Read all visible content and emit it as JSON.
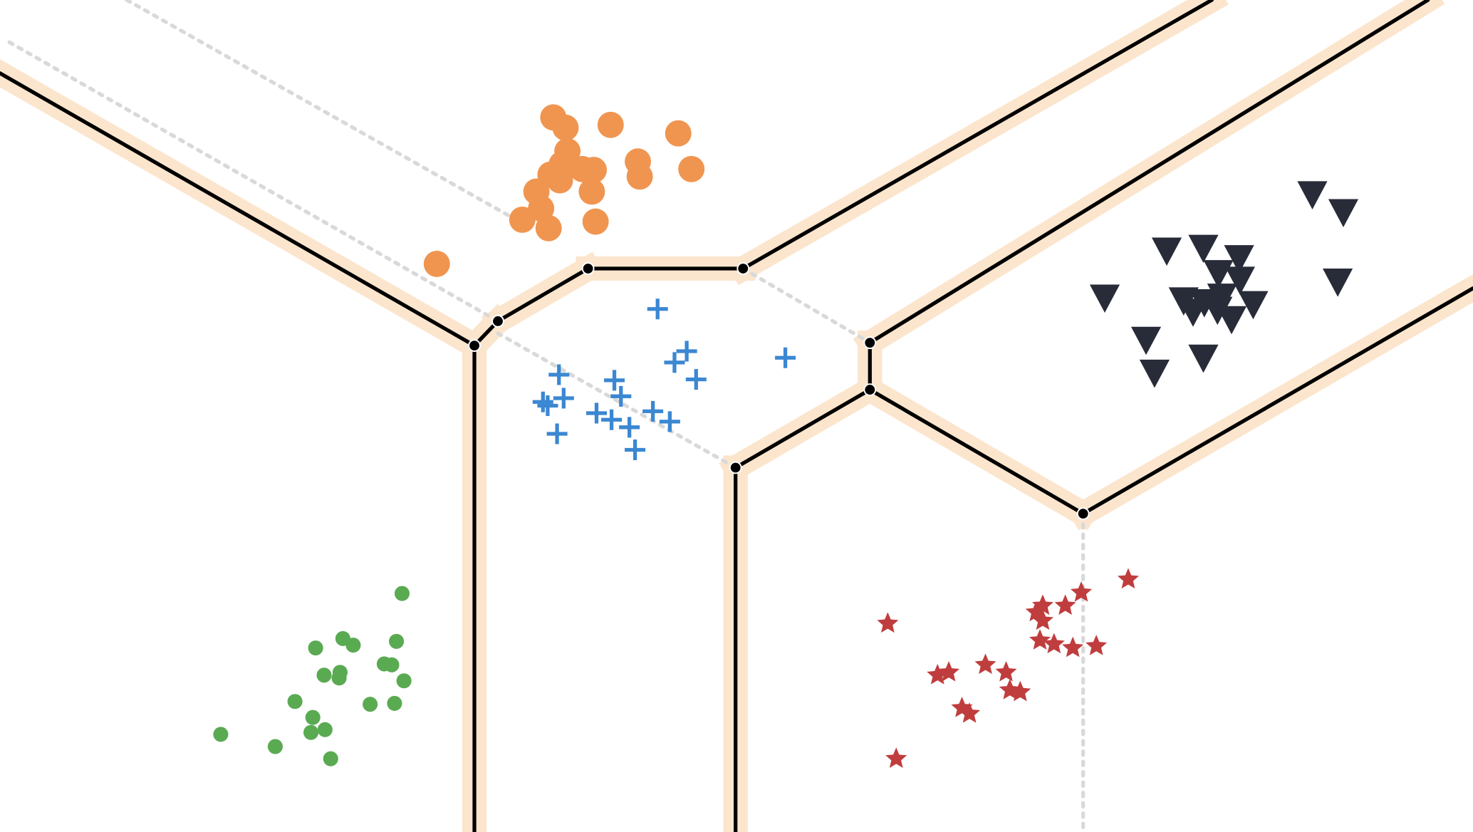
{
  "chart_data": {
    "type": "scatter",
    "title": "",
    "xlabel": "",
    "ylabel": "",
    "xlim": [
      0,
      1568
    ],
    "ylim": [
      0,
      886
    ],
    "grid": false,
    "legend": "none",
    "colors": {
      "boundary": "#000000",
      "margin_band": "#fce5cd",
      "dashed": "#d9d9d9"
    },
    "boundary_vertices": {
      "A": [
        505,
        368
      ],
      "B": [
        530,
        342
      ],
      "C": [
        626,
        286
      ],
      "D": [
        791,
        286
      ],
      "E": [
        926,
        365
      ],
      "F": [
        926,
        415
      ],
      "G": [
        783,
        498
      ],
      "H": [
        1153,
        547
      ]
    },
    "boundary_lines": [
      [
        [
          0,
          78
        ],
        [
          505,
          368
        ]
      ],
      [
        [
          505,
          368
        ],
        [
          505,
          886
        ]
      ],
      [
        [
          505,
          368
        ],
        [
          530,
          342
        ]
      ],
      [
        [
          530,
          342
        ],
        [
          626,
          286
        ]
      ],
      [
        [
          626,
          286
        ],
        [
          791,
          286
        ]
      ],
      [
        [
          791,
          286
        ],
        [
          1290,
          0
        ]
      ],
      [
        [
          926,
          365
        ],
        [
          1520,
          0
        ]
      ],
      [
        [
          926,
          365
        ],
        [
          926,
          415
        ]
      ],
      [
        [
          926,
          415
        ],
        [
          783,
          498
        ]
      ],
      [
        [
          783,
          498
        ],
        [
          783,
          886
        ]
      ],
      [
        [
          926,
          415
        ],
        [
          1153,
          547
        ]
      ],
      [
        [
          1153,
          547
        ],
        [
          1568,
          307
        ]
      ]
    ],
    "dashed_lines": [
      [
        [
          135,
          0
        ],
        [
          560,
          240
        ]
      ],
      [
        [
          10,
          45
        ],
        [
          530,
          342
        ]
      ],
      [
        [
          530,
          355
        ],
        [
          783,
          498
        ]
      ],
      [
        [
          791,
          286
        ],
        [
          926,
          365
        ]
      ],
      [
        [
          1153,
          547
        ],
        [
          1153,
          886
        ]
      ]
    ],
    "series": [
      {
        "marker": "circle-large",
        "color": "#f09550",
        "points": [
          [
            589,
            125
          ],
          [
            602,
            136
          ],
          [
            650,
            133
          ],
          [
            722,
            142
          ],
          [
            604,
            161
          ],
          [
            679,
            172
          ],
          [
            681,
            188
          ],
          [
            736,
            180
          ],
          [
            632,
            181
          ],
          [
            620,
            180
          ],
          [
            598,
            175
          ],
          [
            586,
            186
          ],
          [
            596,
            192
          ],
          [
            571,
            204
          ],
          [
            630,
            204
          ],
          [
            576,
            222
          ],
          [
            556,
            234
          ],
          [
            584,
            243
          ],
          [
            634,
            236
          ],
          [
            465,
            281
          ]
        ]
      },
      {
        "marker": "plus",
        "color": "#3b87d2",
        "points": [
          [
            700,
            329
          ],
          [
            731,
            374
          ],
          [
            718,
            386
          ],
          [
            836,
            381
          ],
          [
            595,
            399
          ],
          [
            741,
            404
          ],
          [
            654,
            405
          ],
          [
            578,
            428
          ],
          [
            600,
            424
          ],
          [
            583,
            432
          ],
          [
            661,
            422
          ],
          [
            635,
            440
          ],
          [
            651,
            447
          ],
          [
            695,
            438
          ],
          [
            670,
            455
          ],
          [
            713,
            449
          ],
          [
            593,
            462
          ],
          [
            676,
            479
          ]
        ]
      },
      {
        "marker": "triangle-down",
        "color": "#282c38",
        "points": [
          [
            1397,
            207
          ],
          [
            1430,
            226
          ],
          [
            1242,
            267
          ],
          [
            1281,
            264
          ],
          [
            1319,
            275
          ],
          [
            1297,
            291
          ],
          [
            1320,
            298
          ],
          [
            1176,
            317
          ],
          [
            1260,
            320
          ],
          [
            1282,
            322
          ],
          [
            1334,
            324
          ],
          [
            1301,
            316
          ],
          [
            1270,
            332
          ],
          [
            1296,
            330
          ],
          [
            1311,
            340
          ],
          [
            1424,
            300
          ],
          [
            1220,
            362
          ],
          [
            1281,
            381
          ],
          [
            1229,
            397
          ]
        ]
      },
      {
        "marker": "circle-small",
        "color": "#5aaa52",
        "points": [
          [
            428,
            632
          ],
          [
            365,
            680
          ],
          [
            376,
            687
          ],
          [
            422,
            683
          ],
          [
            336,
            690
          ],
          [
            409,
            707
          ],
          [
            417,
            708
          ],
          [
            345,
            719
          ],
          [
            362,
            716
          ],
          [
            430,
            725
          ],
          [
            361,
            722
          ],
          [
            314,
            747
          ],
          [
            394,
            750
          ],
          [
            420,
            749
          ],
          [
            333,
            764
          ],
          [
            346,
            777
          ],
          [
            331,
            780
          ],
          [
            235,
            782
          ],
          [
            293,
            795
          ],
          [
            352,
            808
          ]
        ]
      },
      {
        "marker": "star",
        "color": "#c03d3e",
        "points": [
          [
            1201,
            617
          ],
          [
            1151,
            631
          ],
          [
            1110,
            645
          ],
          [
            1134,
            645
          ],
          [
            1103,
            652
          ],
          [
            1110,
            661
          ],
          [
            945,
            664
          ],
          [
            1107,
            682
          ],
          [
            1122,
            686
          ],
          [
            1142,
            690
          ],
          [
            1167,
            688
          ],
          [
            1049,
            708
          ],
          [
            1071,
            716
          ],
          [
            998,
            719
          ],
          [
            1010,
            716
          ],
          [
            1075,
            735
          ],
          [
            1086,
            737
          ],
          [
            1024,
            754
          ],
          [
            1032,
            760
          ],
          [
            954,
            808
          ]
        ]
      }
    ]
  }
}
